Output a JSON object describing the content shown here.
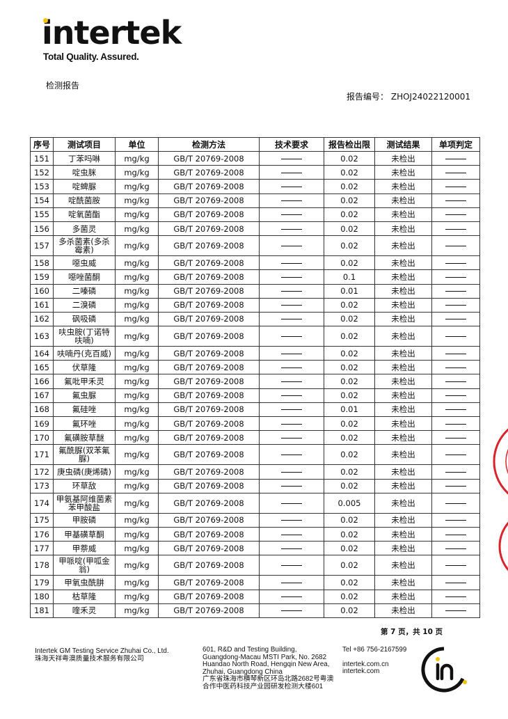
{
  "header": {
    "logo_text": "intertek",
    "tagline": "Total Quality. Assured.",
    "doc_title": "检测报告",
    "report_no_label": "报告编号：",
    "report_no": "ZHOJ24022120001"
  },
  "table": {
    "columns": [
      "序号",
      "测试项目",
      "单位",
      "检测方法",
      "技术要求",
      "报告检出限",
      "测试结果",
      "单项判定"
    ],
    "rows": [
      {
        "no": "151",
        "item": "丁苯吗啉",
        "unit": "mg/kg",
        "method": "GB/T 20769-2008",
        "limit": "0.02",
        "result": "未检出"
      },
      {
        "no": "152",
        "item": "啶虫脒",
        "unit": "mg/kg",
        "method": "GB/T 20769-2008",
        "limit": "0.02",
        "result": "未检出"
      },
      {
        "no": "153",
        "item": "啶蜱脲",
        "unit": "mg/kg",
        "method": "GB/T 20769-2008",
        "limit": "0.02",
        "result": "未检出"
      },
      {
        "no": "154",
        "item": "啶酰菌胺",
        "unit": "mg/kg",
        "method": "GB/T 20769-2008",
        "limit": "0.02",
        "result": "未检出"
      },
      {
        "no": "155",
        "item": "啶氧菌酯",
        "unit": "mg/kg",
        "method": "GB/T 20769-2008",
        "limit": "0.02",
        "result": "未检出"
      },
      {
        "no": "156",
        "item": "多菌灵",
        "unit": "mg/kg",
        "method": "GB/T 20769-2008",
        "limit": "0.02",
        "result": "未检出"
      },
      {
        "no": "157",
        "item": "多杀菌素(多杀霉素)",
        "unit": "mg/kg",
        "method": "GB/T 20769-2008",
        "limit": "0.02",
        "result": "未检出",
        "double": true
      },
      {
        "no": "158",
        "item": "噁虫威",
        "unit": "mg/kg",
        "method": "GB/T 20769-2008",
        "limit": "0.02",
        "result": "未检出"
      },
      {
        "no": "159",
        "item": "噁唑菌酮",
        "unit": "mg/kg",
        "method": "GB/T 20769-2008",
        "limit": "0.1",
        "result": "未检出"
      },
      {
        "no": "160",
        "item": "二嗪磷",
        "unit": "mg/kg",
        "method": "GB/T 20769-2008",
        "limit": "0.01",
        "result": "未检出"
      },
      {
        "no": "161",
        "item": "二溴磷",
        "unit": "mg/kg",
        "method": "GB/T 20769-2008",
        "limit": "0.02",
        "result": "未检出"
      },
      {
        "no": "162",
        "item": "砜吸磷",
        "unit": "mg/kg",
        "method": "GB/T 20769-2008",
        "limit": "0.02",
        "result": "未检出"
      },
      {
        "no": "163",
        "item": "呋虫胺(丁诺特呋喃)",
        "unit": "mg/kg",
        "method": "GB/T 20769-2008",
        "limit": "0.02",
        "result": "未检出",
        "double": true
      },
      {
        "no": "164",
        "item": "呋喃丹(克百威)",
        "unit": "mg/kg",
        "method": "GB/T 20769-2008",
        "limit": "0.02",
        "result": "未检出"
      },
      {
        "no": "165",
        "item": "伏草隆",
        "unit": "mg/kg",
        "method": "GB/T 20769-2008",
        "limit": "0.02",
        "result": "未检出"
      },
      {
        "no": "166",
        "item": "氟吡甲禾灵",
        "unit": "mg/kg",
        "method": "GB/T 20769-2008",
        "limit": "0.02",
        "result": "未检出"
      },
      {
        "no": "167",
        "item": "氟虫脲",
        "unit": "mg/kg",
        "method": "GB/T 20769-2008",
        "limit": "0.02",
        "result": "未检出"
      },
      {
        "no": "168",
        "item": "氟硅唑",
        "unit": "mg/kg",
        "method": "GB/T 20769-2008",
        "limit": "0.01",
        "result": "未检出"
      },
      {
        "no": "169",
        "item": "氟环唑",
        "unit": "mg/kg",
        "method": "GB/T 20769-2008",
        "limit": "0.02",
        "result": "未检出"
      },
      {
        "no": "170",
        "item": "氟磺胺草醚",
        "unit": "mg/kg",
        "method": "GB/T 20769-2008",
        "limit": "0.02",
        "result": "未检出"
      },
      {
        "no": "171",
        "item": "氟酰脲(双苯氟脲)",
        "unit": "mg/kg",
        "method": "GB/T 20769-2008",
        "limit": "0.02",
        "result": "未检出",
        "double": true
      },
      {
        "no": "172",
        "item": "庚虫磷(庚烯磷)",
        "unit": "mg/kg",
        "method": "GB/T 20769-2008",
        "limit": "0.02",
        "result": "未检出"
      },
      {
        "no": "173",
        "item": "环草敌",
        "unit": "mg/kg",
        "method": "GB/T 20769-2008",
        "limit": "0.02",
        "result": "未检出"
      },
      {
        "no": "174",
        "item": "甲氨基阿维菌素苯甲酸盐",
        "unit": "mg/kg",
        "method": "GB/T 20769-2008",
        "limit": "0.005",
        "result": "未检出",
        "double": true
      },
      {
        "no": "175",
        "item": "甲胺磷",
        "unit": "mg/kg",
        "method": "GB/T 20769-2008",
        "limit": "0.02",
        "result": "未检出"
      },
      {
        "no": "176",
        "item": "甲基磺草酮",
        "unit": "mg/kg",
        "method": "GB/T 20769-2008",
        "limit": "0.02",
        "result": "未检出"
      },
      {
        "no": "177",
        "item": "甲萘威",
        "unit": "mg/kg",
        "method": "GB/T 20769-2008",
        "limit": "0.02",
        "result": "未检出"
      },
      {
        "no": "178",
        "item": "甲哌啶(甲呱金翁)",
        "unit": "mg/kg",
        "method": "GB/T 20769-2008",
        "limit": "0.02",
        "result": "未检出",
        "double": true
      },
      {
        "no": "179",
        "item": "甲氧虫酰肼",
        "unit": "mg/kg",
        "method": "GB/T 20769-2008",
        "limit": "0.02",
        "result": "未检出"
      },
      {
        "no": "180",
        "item": "枯草隆",
        "unit": "mg/kg",
        "method": "GB/T 20769-2008",
        "limit": "0.02",
        "result": "未检出"
      },
      {
        "no": "181",
        "item": "喹禾灵",
        "unit": "mg/kg",
        "method": "GB/T 20769-2008",
        "limit": "0.02",
        "result": "未检出"
      }
    ]
  },
  "page_indicator": "第 7 页，共 10 页",
  "footer": {
    "company_en": "Intertek GM Testing Service Zhuhai Co., Ltd.",
    "company_cn": "珠海天祥粤澳质量技术服务有限公司",
    "address_lines": [
      "601, R&D and Testing Building,",
      "Guangdong-Macau MSTI Park, No. 2682",
      "Huandao North Road, Hengqin New Area,",
      "Zhuhai, Guangdong China",
      "广东省珠海市横琴新区环岛北路2682号粤澳",
      "合作中医药科技产业园研发检测大楼601"
    ],
    "tel": "Tel +86 756-2167599",
    "web1": "intertek.com.cn",
    "web2": "intertek.com"
  },
  "colors": {
    "stamp": "#d8232a",
    "logo_dot": "#f5c400"
  }
}
